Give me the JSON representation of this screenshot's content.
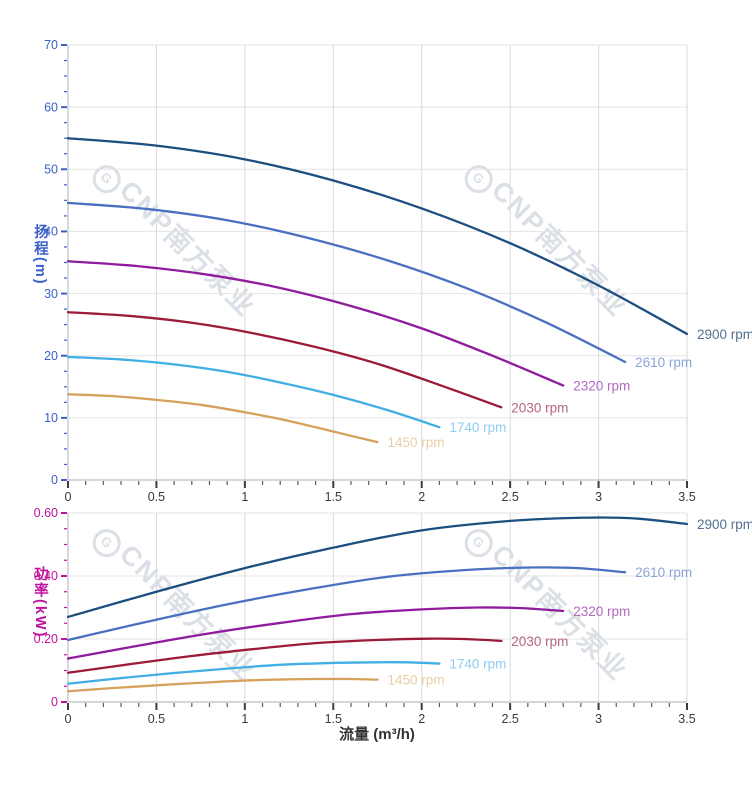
{
  "background": "#ffffff",
  "watermark": {
    "logo": "G",
    "text": "CNP南方泵业"
  },
  "chart_data": [
    {
      "type": "line",
      "title": "",
      "xlabel": "流量 (m³/h)",
      "ylabel": "扬程(m)",
      "xlim": [
        0,
        3.5
      ],
      "ylim": [
        0,
        70
      ],
      "x_major_step": 0.5,
      "x_minor_step": 0.1,
      "y_major_step": 10,
      "y_minor_step": 2.5,
      "axis_color": "#3a5fc8",
      "x_tick_label_color": "#37393c",
      "x_tick_labels": [
        "0",
        "0.5",
        "1",
        "1.5",
        "2",
        "2.5",
        "3",
        "3.5"
      ],
      "y_tick_labels": [
        "0",
        "10",
        "20",
        "30",
        "40",
        "50",
        "60",
        "70"
      ],
      "grid": true,
      "legend_position": "end-of-line-labels",
      "series": [
        {
          "name": "2900 rpm",
          "color": "#1c4e80",
          "label_color": "#54718f",
          "points": [
            [
              0,
              55
            ],
            [
              0.5,
              53.8
            ],
            [
              1,
              51.6
            ],
            [
              1.5,
              48.2
            ],
            [
              2,
              43.7
            ],
            [
              2.5,
              38.1
            ],
            [
              3,
              31.3
            ],
            [
              3.5,
              23.5
            ]
          ]
        },
        {
          "name": "2610 rpm",
          "color": "#4a70c2",
          "label_color": "#8ba4da",
          "points": [
            [
              0,
              44.6
            ],
            [
              0.45,
              43.6
            ],
            [
              0.9,
              41.8
            ],
            [
              1.35,
              39
            ],
            [
              1.8,
              35.4
            ],
            [
              2.25,
              30.9
            ],
            [
              2.7,
              25.4
            ],
            [
              3.15,
              19
            ]
          ]
        },
        {
          "name": "2320 rpm",
          "color": "#8f1b9d",
          "label_color": "#b169c1",
          "points": [
            [
              0,
              35.2
            ],
            [
              0.4,
              34.4
            ],
            [
              0.8,
              33
            ],
            [
              1.2,
              30.9
            ],
            [
              1.6,
              28
            ],
            [
              2,
              24.4
            ],
            [
              2.4,
              20
            ],
            [
              2.8,
              15.2
            ]
          ]
        },
        {
          "name": "2030 rpm",
          "color": "#9b1b38",
          "label_color": "#b2657f",
          "points": [
            [
              0,
              27
            ],
            [
              0.35,
              26.4
            ],
            [
              0.7,
              25.3
            ],
            [
              1.05,
              23.6
            ],
            [
              1.4,
              21.4
            ],
            [
              1.75,
              18.7
            ],
            [
              2.1,
              15.3
            ],
            [
              2.45,
              11.7
            ]
          ]
        },
        {
          "name": "1740 rpm",
          "color": "#41afe3",
          "label_color": "#8ecdf2",
          "points": [
            [
              0,
              19.8
            ],
            [
              0.3,
              19.4
            ],
            [
              0.6,
              18.6
            ],
            [
              0.9,
              17.4
            ],
            [
              1.2,
              15.7
            ],
            [
              1.5,
              13.7
            ],
            [
              1.8,
              11.3
            ],
            [
              2.1,
              8.5
            ]
          ]
        },
        {
          "name": "1450 rpm",
          "color": "#d6a15c",
          "label_color": "#e9cfa4",
          "points": [
            [
              0,
              13.8
            ],
            [
              0.25,
              13.5
            ],
            [
              0.5,
              12.9
            ],
            [
              0.75,
              12.1
            ],
            [
              1,
              10.9
            ],
            [
              1.25,
              9.5
            ],
            [
              1.5,
              7.8
            ],
            [
              1.75,
              6.1
            ]
          ]
        }
      ]
    },
    {
      "type": "line",
      "title": "",
      "xlabel": "流量 (m³/h)",
      "ylabel": "功率(kW)",
      "xlim": [
        0,
        3.5
      ],
      "ylim": [
        0,
        0.6
      ],
      "x_major_step": 0.5,
      "x_minor_step": 0.1,
      "y_major_step": 0.2,
      "y_minor_step": 0.05,
      "axis_color": "#c0119c",
      "x_tick_label_color": "#37393c",
      "x_tick_labels": [
        "0",
        "0.5",
        "1",
        "1.5",
        "2",
        "2.5",
        "3",
        "3.5"
      ],
      "y_tick_labels": [
        "0",
        "0.20",
        "0.40",
        "0.60"
      ],
      "grid": true,
      "legend_position": "end-of-line-labels",
      "series": [
        {
          "name": "2900 rpm",
          "color": "#1c4e80",
          "label_color": "#54718f",
          "points": [
            [
              0,
              0.27
            ],
            [
              0.5,
              0.35
            ],
            [
              1,
              0.425
            ],
            [
              1.5,
              0.49
            ],
            [
              2,
              0.545
            ],
            [
              2.5,
              0.575
            ],
            [
              2.9,
              0.585
            ],
            [
              3.2,
              0.583
            ],
            [
              3.5,
              0.565
            ]
          ]
        },
        {
          "name": "2610 rpm",
          "color": "#4a70c2",
          "label_color": "#8ba4da",
          "points": [
            [
              0,
              0.197
            ],
            [
              0.45,
              0.255
            ],
            [
              0.9,
              0.31
            ],
            [
              1.35,
              0.357
            ],
            [
              1.8,
              0.397
            ],
            [
              2.25,
              0.419
            ],
            [
              2.61,
              0.427
            ],
            [
              2.88,
              0.425
            ],
            [
              3.15,
              0.412
            ]
          ]
        },
        {
          "name": "2320 rpm",
          "color": "#8f1b9d",
          "label_color": "#b169c1",
          "points": [
            [
              0,
              0.138
            ],
            [
              0.4,
              0.179
            ],
            [
              0.8,
              0.218
            ],
            [
              1.2,
              0.251
            ],
            [
              1.6,
              0.279
            ],
            [
              2,
              0.294
            ],
            [
              2.32,
              0.3
            ],
            [
              2.56,
              0.298
            ],
            [
              2.8,
              0.289
            ]
          ]
        },
        {
          "name": "2030 rpm",
          "color": "#9b1b38",
          "label_color": "#b2657f",
          "points": [
            [
              0,
              0.093
            ],
            [
              0.35,
              0.12
            ],
            [
              0.7,
              0.146
            ],
            [
              1.05,
              0.168
            ],
            [
              1.4,
              0.187
            ],
            [
              1.75,
              0.197
            ],
            [
              2.03,
              0.201
            ],
            [
              2.24,
              0.2
            ],
            [
              2.45,
              0.194
            ]
          ]
        },
        {
          "name": "1740 rpm",
          "color": "#41afe3",
          "label_color": "#8ecdf2",
          "points": [
            [
              0,
              0.058
            ],
            [
              0.3,
              0.076
            ],
            [
              0.6,
              0.092
            ],
            [
              0.9,
              0.106
            ],
            [
              1.2,
              0.118
            ],
            [
              1.5,
              0.124
            ],
            [
              1.74,
              0.126
            ],
            [
              1.92,
              0.126
            ],
            [
              2.1,
              0.122
            ]
          ]
        },
        {
          "name": "1450 rpm",
          "color": "#d6a15c",
          "label_color": "#e9cfa4",
          "points": [
            [
              0,
              0.034
            ],
            [
              0.25,
              0.044
            ],
            [
              0.5,
              0.053
            ],
            [
              0.75,
              0.061
            ],
            [
              1,
              0.068
            ],
            [
              1.25,
              0.072
            ],
            [
              1.45,
              0.073
            ],
            [
              1.6,
              0.073
            ],
            [
              1.75,
              0.071
            ]
          ]
        }
      ]
    }
  ]
}
